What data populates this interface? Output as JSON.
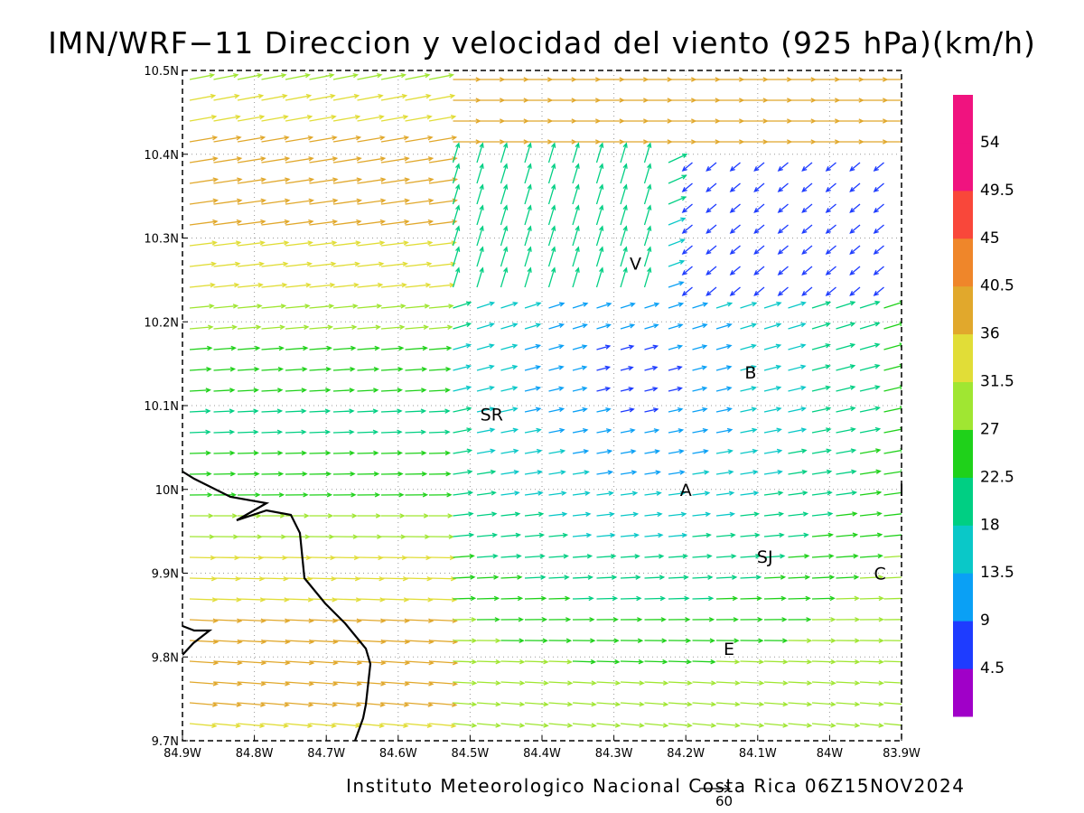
{
  "title": "IMN/WRF−11 Direccion y velocidad del viento (925 hPa)(km/h)",
  "footer": "Instituto Meteorologico Nacional Costa Rica 06Z15NOV2024",
  "reference_vector": "60",
  "map": {
    "lon_ticks": [
      "84.9W",
      "84.8W",
      "84.7W",
      "84.6W",
      "84.5W",
      "84.4W",
      "84.3W",
      "84.2W",
      "84.1W",
      "84W",
      "83.9W"
    ],
    "lat_ticks": [
      "10.5N",
      "10.4N",
      "10.3N",
      "10.2N",
      "10.1N",
      "10N",
      "9.9N",
      "9.8N",
      "9.7N"
    ],
    "places": [
      {
        "name": "V",
        "lon": -84.27,
        "lat": 10.27
      },
      {
        "name": "B",
        "lon": -84.11,
        "lat": 10.14
      },
      {
        "name": "SR",
        "lon": -84.47,
        "lat": 10.09
      },
      {
        "name": "A",
        "lon": -84.2,
        "lat": 10.0
      },
      {
        "name": "I",
        "lon": -83.9,
        "lat": 10.0
      },
      {
        "name": "SJ",
        "lon": -84.09,
        "lat": 9.92
      },
      {
        "name": "C",
        "lon": -83.93,
        "lat": 9.9
      },
      {
        "name": "E",
        "lon": -84.14,
        "lat": 9.81
      }
    ]
  },
  "colorbar": {
    "labels": [
      "54",
      "49.5",
      "45",
      "40.5",
      "36",
      "31.5",
      "27",
      "22.5",
      "18",
      "13.5",
      "9",
      "4.5"
    ],
    "colors": [
      "#f0137f",
      "#f9473a",
      "#ef862a",
      "#e1a82c",
      "#e1dd37",
      "#a0e632",
      "#1fd11a",
      "#00cf83",
      "#0ac8c8",
      "#0aa0f5",
      "#1e3cff",
      "#a000c8"
    ]
  }
}
